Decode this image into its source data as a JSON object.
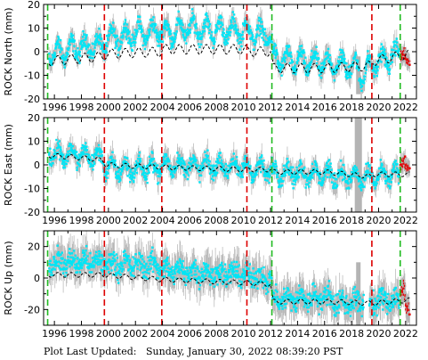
{
  "footer": {
    "label": "Plot Last Updated:",
    "timestamp": "Sunday, January 30, 2022 08:39:20 PST"
  },
  "colors": {
    "data": "#00e5f5",
    "error_bars": "#b4b4b4",
    "recent_data": "#e00000",
    "model": "#000000",
    "vline_red": "#dd0000",
    "vline_green": "#22bb22"
  },
  "chart_data": [
    {
      "type": "scatter",
      "ylabel": "ROCK North (mm)",
      "xlim": [
        1995.2,
        2022.8
      ],
      "ylim": [
        -20,
        20
      ],
      "yticks": [
        -20,
        -10,
        0,
        10,
        20
      ],
      "xticks": [
        1996,
        1998,
        2000,
        2002,
        2004,
        2006,
        2008,
        2010,
        2012,
        2014,
        2016,
        2018,
        2020,
        2022
      ],
      "vlines_red": [
        1999.7,
        2003.95,
        2010.25,
        2019.5
      ],
      "vlines_green": [
        1995.5,
        2012.1,
        2021.6
      ],
      "data_mean": [
        {
          "x": 1995.6,
          "y": -1
        },
        {
          "x": 1996.5,
          "y": 0
        },
        {
          "x": 1998.0,
          "y": 2
        },
        {
          "x": 1999.6,
          "y": 3
        },
        {
          "x": 1999.8,
          "y": 5
        },
        {
          "x": 2001.5,
          "y": 7
        },
        {
          "x": 2003.9,
          "y": 9
        },
        {
          "x": 2004.0,
          "y": 8
        },
        {
          "x": 2006.0,
          "y": 10
        },
        {
          "x": 2008.0,
          "y": 9
        },
        {
          "x": 2010.2,
          "y": 9
        },
        {
          "x": 2010.3,
          "y": 8
        },
        {
          "x": 2012.0,
          "y": 7
        },
        {
          "x": 2012.2,
          "y": -3
        },
        {
          "x": 2014.0,
          "y": -4
        },
        {
          "x": 2016.0,
          "y": -5
        },
        {
          "x": 2018.3,
          "y": -6
        },
        {
          "x": 2018.7,
          "y": -10
        },
        {
          "x": 2019.4,
          "y": -6
        },
        {
          "x": 2019.6,
          "y": -5
        },
        {
          "x": 2021.5,
          "y": -1
        },
        {
          "x": 2022.3,
          "y": 0
        }
      ],
      "model": [
        {
          "x": 1995.6,
          "y": -4
        },
        {
          "x": 1999.6,
          "y": -2
        },
        {
          "x": 1999.8,
          "y": -1
        },
        {
          "x": 2003.9,
          "y": 0
        },
        {
          "x": 2004.0,
          "y": 1
        },
        {
          "x": 2010.2,
          "y": 1
        },
        {
          "x": 2010.3,
          "y": 0
        },
        {
          "x": 2012.0,
          "y": 0
        },
        {
          "x": 2012.2,
          "y": -7
        },
        {
          "x": 2016.0,
          "y": -7
        },
        {
          "x": 2019.4,
          "y": -6
        },
        {
          "x": 2019.6,
          "y": -4
        },
        {
          "x": 2022.3,
          "y": -1
        }
      ],
      "seasonal_amplitude": 4,
      "model_amplitude": 2,
      "scatter_spread": 3,
      "error_bar_half": 4,
      "recent": [
        {
          "x": 2021.7,
          "y": -2
        },
        {
          "x": 2021.9,
          "y": -1
        },
        {
          "x": 2022.1,
          "y": -4
        }
      ],
      "spikes": [
        {
          "x": 2018.5,
          "y0": -18,
          "y1": -2
        }
      ]
    },
    {
      "type": "scatter",
      "ylabel": "ROCK East (mm)",
      "xlim": [
        1995.2,
        2022.8
      ],
      "ylim": [
        -20,
        20
      ],
      "yticks": [
        -20,
        -10,
        0,
        10,
        20
      ],
      "xticks": [
        1996,
        1998,
        2000,
        2002,
        2004,
        2006,
        2008,
        2010,
        2012,
        2014,
        2016,
        2018,
        2020,
        2022
      ],
      "vlines_red": [
        1999.7,
        2003.95,
        2010.25,
        2019.5
      ],
      "vlines_green": [
        1995.5,
        2012.1,
        2021.6
      ],
      "data_mean": [
        {
          "x": 1995.6,
          "y": 5
        },
        {
          "x": 1998.0,
          "y": 4
        },
        {
          "x": 1999.6,
          "y": 3
        },
        {
          "x": 1999.8,
          "y": -1
        },
        {
          "x": 2001.5,
          "y": -2
        },
        {
          "x": 2003.9,
          "y": -1
        },
        {
          "x": 2004.0,
          "y": 0
        },
        {
          "x": 2010.2,
          "y": -1
        },
        {
          "x": 2010.3,
          "y": -2
        },
        {
          "x": 2012.0,
          "y": -2
        },
        {
          "x": 2012.2,
          "y": -3
        },
        {
          "x": 2016.0,
          "y": -4
        },
        {
          "x": 2019.4,
          "y": -6
        },
        {
          "x": 2019.6,
          "y": -5
        },
        {
          "x": 2022.3,
          "y": -4
        }
      ],
      "model": [
        {
          "x": 1995.6,
          "y": 4
        },
        {
          "x": 1998.0,
          "y": 3
        },
        {
          "x": 1999.6,
          "y": 2
        },
        {
          "x": 1999.8,
          "y": 0
        },
        {
          "x": 2003.9,
          "y": -1
        },
        {
          "x": 2004.0,
          "y": -1
        },
        {
          "x": 2010.2,
          "y": -2
        },
        {
          "x": 2012.0,
          "y": -2
        },
        {
          "x": 2012.2,
          "y": -3
        },
        {
          "x": 2016.0,
          "y": -3
        },
        {
          "x": 2019.4,
          "y": -5
        },
        {
          "x": 2019.6,
          "y": -4
        },
        {
          "x": 2022.3,
          "y": -4
        }
      ],
      "seasonal_amplitude": 3,
      "model_amplitude": 1,
      "scatter_spread": 3,
      "error_bar_half": 4,
      "recent": [
        {
          "x": 2021.7,
          "y": 0
        },
        {
          "x": 2021.9,
          "y": 2
        },
        {
          "x": 2022.1,
          "y": -1
        }
      ],
      "spikes": [
        {
          "x": 2018.4,
          "y0": -20,
          "y1": 20
        },
        {
          "x": 2018.6,
          "y0": -20,
          "y1": 20
        }
      ]
    },
    {
      "type": "scatter",
      "ylabel": "ROCK Up (mm)",
      "xlim": [
        1995.2,
        2022.8
      ],
      "ylim": [
        -30,
        30
      ],
      "yticks": [
        -20,
        0,
        20
      ],
      "xticks": [
        1996,
        1998,
        2000,
        2002,
        2004,
        2006,
        2008,
        2010,
        2012,
        2014,
        2016,
        2018,
        2020,
        2022
      ],
      "vlines_red": [
        1999.7,
        2003.95,
        2010.25,
        2019.5
      ],
      "vlines_green": [
        1995.5,
        2012.1,
        2021.6
      ],
      "data_mean": [
        {
          "x": 1995.6,
          "y": 10
        },
        {
          "x": 1999.6,
          "y": 10
        },
        {
          "x": 1999.8,
          "y": 9
        },
        {
          "x": 2003.9,
          "y": 8
        },
        {
          "x": 2004.0,
          "y": 5
        },
        {
          "x": 2010.2,
          "y": 2
        },
        {
          "x": 2010.3,
          "y": 1
        },
        {
          "x": 2012.0,
          "y": 0
        },
        {
          "x": 2012.2,
          "y": -14
        },
        {
          "x": 2016.5,
          "y": -12
        },
        {
          "x": 2016.8,
          "y": -16
        },
        {
          "x": 2019.4,
          "y": -15
        },
        {
          "x": 2019.6,
          "y": -15
        },
        {
          "x": 2022.3,
          "y": -13
        }
      ],
      "model": [
        {
          "x": 1995.6,
          "y": 2
        },
        {
          "x": 1999.6,
          "y": 2
        },
        {
          "x": 2004.0,
          "y": -1
        },
        {
          "x": 2010.2,
          "y": -3
        },
        {
          "x": 2012.0,
          "y": -4
        },
        {
          "x": 2012.2,
          "y": -15
        },
        {
          "x": 2016.5,
          "y": -15
        },
        {
          "x": 2019.4,
          "y": -16
        },
        {
          "x": 2022.3,
          "y": -14
        }
      ],
      "seasonal_amplitude": 3,
      "model_amplitude": 1.5,
      "scatter_spread": 6,
      "error_bar_half": 10,
      "recent": [
        {
          "x": 2021.7,
          "y": -10
        },
        {
          "x": 2021.9,
          "y": -6
        },
        {
          "x": 2022.1,
          "y": -20
        }
      ],
      "spikes": [
        {
          "x": 2018.5,
          "y0": -30,
          "y1": 10
        }
      ]
    }
  ]
}
